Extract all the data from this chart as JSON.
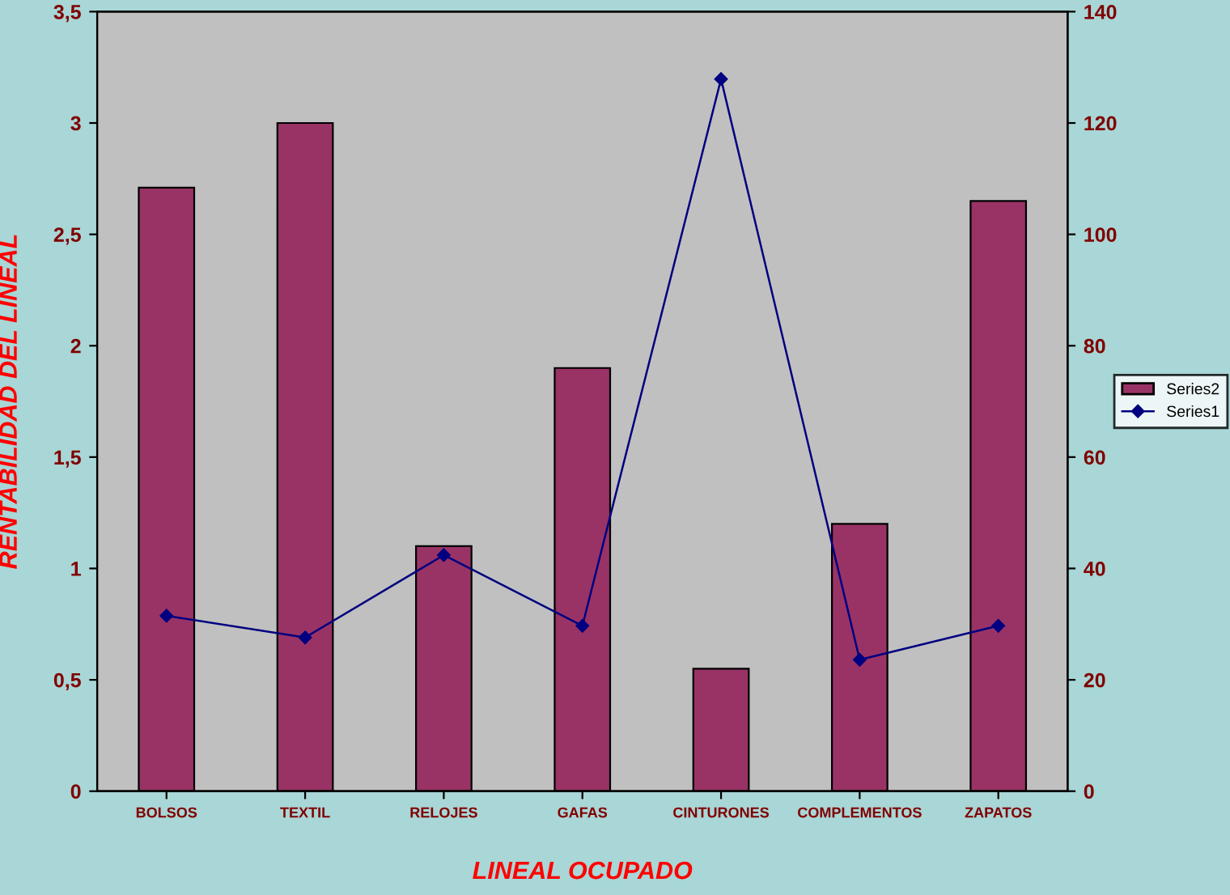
{
  "chart_data": {
    "type": "bar",
    "xlabel": "LINEAL OCUPADO",
    "ylabel": "RENTABILIDAD DEL LINEAL",
    "categories": [
      "BOLSOS",
      "TEXTIL",
      "RELOJES",
      "GAFAS",
      "CINTURONES",
      "COMPLEMENTOS",
      "ZAPATOS"
    ],
    "series": [
      {
        "name": "Series2",
        "color": "#993366",
        "values": [
          2.71,
          3.0,
          1.1,
          1.9,
          0.55,
          1.2,
          2.65
        ]
      },
      {
        "name": "Series1",
        "type": "line",
        "axis": "y2",
        "color": "#000080",
        "marker": "diamond",
        "values": [
          31.5,
          27.6,
          42.4,
          29.7,
          127.9,
          23.6,
          29.7
        ]
      }
    ],
    "ylim": [
      0,
      3.5
    ],
    "yticks": [
      0,
      {
        "value": 0.5,
        "label": "0,5"
      },
      1,
      {
        "value": 1.5,
        "label": "1,5"
      },
      2,
      {
        "value": 2.5,
        "label": "2,5"
      },
      3,
      {
        "value": 3.5,
        "label": "3,5"
      }
    ],
    "y2lim": [
      0,
      140
    ],
    "y2ticks": [
      0,
      20,
      40,
      60,
      80,
      100,
      120,
      140
    ],
    "grid": false,
    "legend": "right"
  }
}
